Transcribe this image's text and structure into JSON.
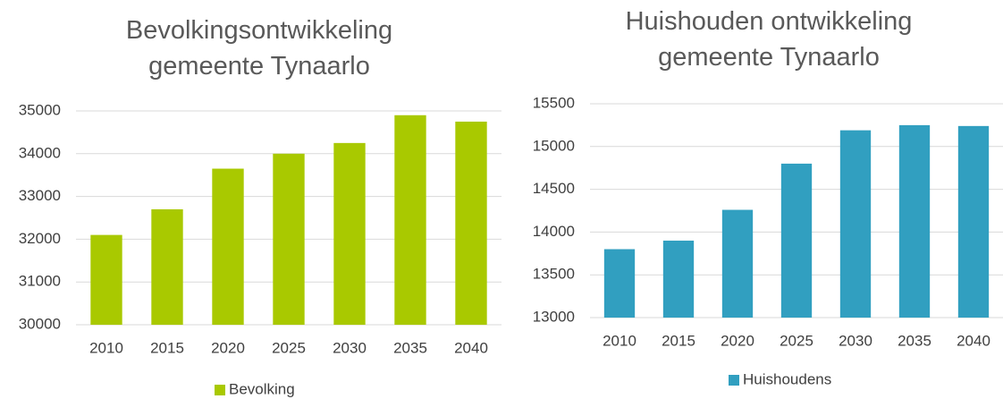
{
  "chart_data": [
    {
      "type": "bar",
      "title": "Bevolkingsontwikkeling gemeente Tynaarlo",
      "categories": [
        "2010",
        "2015",
        "2020",
        "2025",
        "2030",
        "2035",
        "2040"
      ],
      "series": [
        {
          "name": "Bevolking",
          "color": "#a9c900",
          "values": [
            32100,
            32700,
            33650,
            34000,
            34250,
            34900,
            34750
          ]
        }
      ],
      "ylim": [
        30000,
        35000
      ],
      "yticks": [
        30000,
        31000,
        32000,
        33000,
        34000,
        35000
      ],
      "grid": true,
      "legend": "bottom"
    },
    {
      "type": "bar",
      "title": "Huishouden ontwikkeling gemeente Tynaarlo",
      "categories": [
        "2010",
        "2015",
        "2020",
        "2025",
        "2030",
        "2035",
        "2040"
      ],
      "series": [
        {
          "name": "Huishoudens",
          "color": "#319fc0",
          "values": [
            13800,
            13900,
            14260,
            14800,
            15190,
            15250,
            15240
          ]
        }
      ],
      "ylim": [
        13000,
        15500
      ],
      "yticks": [
        13000,
        13500,
        14000,
        14500,
        15000,
        15500
      ],
      "grid": true,
      "legend": "bottom"
    }
  ]
}
